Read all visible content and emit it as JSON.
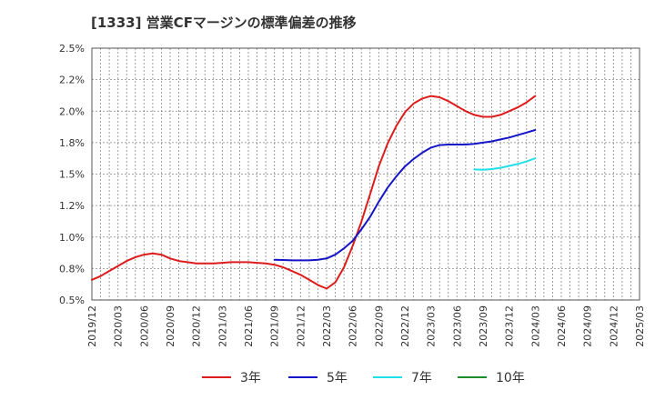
{
  "chart_data": {
    "type": "line",
    "title": "[1333]  営業CFマージンの標準偏差の推移",
    "xlabel": "",
    "ylabel": "",
    "ylim": [
      0.5,
      2.5
    ],
    "y_ticks": [
      "0.5%",
      "0.8%",
      "1.0%",
      "1.2%",
      "1.5%",
      "1.8%",
      "2.0%",
      "2.2%",
      "2.5%"
    ],
    "x_ticks": [
      "2019/12",
      "2020/03",
      "2020/06",
      "2020/09",
      "2020/12",
      "2021/03",
      "2021/06",
      "2021/09",
      "2021/12",
      "2022/03",
      "2022/06",
      "2022/09",
      "2022/12",
      "2023/03",
      "2023/06",
      "2023/09",
      "2023/12",
      "2024/03",
      "2024/06",
      "2024/09",
      "2024/12",
      "2025/03"
    ],
    "grid": true,
    "legend_position": "bottom",
    "series": [
      {
        "name": "3年",
        "color": "#dd1c1c",
        "x": [
          "2019/12",
          "2020/01",
          "2020/02",
          "2020/03",
          "2020/04",
          "2020/05",
          "2020/06",
          "2020/07",
          "2020/08",
          "2020/09",
          "2020/10",
          "2020/11",
          "2020/12",
          "2021/01",
          "2021/02",
          "2021/03",
          "2021/04",
          "2021/05",
          "2021/06",
          "2021/07",
          "2021/08",
          "2021/09",
          "2021/10",
          "2021/11",
          "2021/12",
          "2022/01",
          "2022/02",
          "2022/03",
          "2022/04",
          "2022/05",
          "2022/06",
          "2022/07",
          "2022/08",
          "2022/09",
          "2022/10",
          "2022/11",
          "2022/12",
          "2023/01",
          "2023/02",
          "2023/03",
          "2023/04",
          "2023/05",
          "2023/06",
          "2023/07",
          "2023/08",
          "2023/09",
          "2023/10",
          "2023/11",
          "2023/12",
          "2024/01",
          "2024/02",
          "2024/03"
        ],
        "values": [
          0.66,
          0.69,
          0.73,
          0.77,
          0.81,
          0.84,
          0.86,
          0.87,
          0.86,
          0.83,
          0.81,
          0.8,
          0.79,
          0.79,
          0.79,
          0.795,
          0.8,
          0.8,
          0.8,
          0.795,
          0.79,
          0.78,
          0.76,
          0.73,
          0.7,
          0.66,
          0.62,
          0.59,
          0.64,
          0.76,
          0.93,
          1.12,
          1.34,
          1.56,
          1.74,
          1.88,
          1.99,
          2.06,
          2.1,
          2.12,
          2.11,
          2.08,
          2.04,
          2.0,
          1.97,
          1.955,
          1.955,
          1.97,
          2.0,
          2.03,
          2.07,
          2.12
        ]
      },
      {
        "name": "5年",
        "color": "#1515c8",
        "x": [
          "2021/09",
          "2021/10",
          "2021/11",
          "2021/12",
          "2022/01",
          "2022/02",
          "2022/03",
          "2022/04",
          "2022/05",
          "2022/06",
          "2022/07",
          "2022/08",
          "2022/09",
          "2022/10",
          "2022/11",
          "2022/12",
          "2023/01",
          "2023/02",
          "2023/03",
          "2023/04",
          "2023/05",
          "2023/06",
          "2023/07",
          "2023/08",
          "2023/09",
          "2023/10",
          "2023/11",
          "2023/12",
          "2024/01",
          "2024/02",
          "2024/03"
        ],
        "values": [
          0.82,
          0.818,
          0.815,
          0.815,
          0.815,
          0.82,
          0.83,
          0.86,
          0.91,
          0.97,
          1.06,
          1.16,
          1.28,
          1.39,
          1.48,
          1.56,
          1.62,
          1.67,
          1.71,
          1.73,
          1.735,
          1.735,
          1.735,
          1.74,
          1.75,
          1.76,
          1.775,
          1.79,
          1.81,
          1.83,
          1.85
        ]
      },
      {
        "name": "7年",
        "color": "#22e0e8",
        "x": [
          "2023/08",
          "2023/09",
          "2023/10",
          "2023/11",
          "2023/12",
          "2024/01",
          "2024/02",
          "2024/03"
        ],
        "values": [
          1.537,
          1.535,
          1.54,
          1.55,
          1.565,
          1.58,
          1.6,
          1.625
        ]
      },
      {
        "name": "10年",
        "color": "#1f8c2a",
        "x": [],
        "values": []
      }
    ]
  }
}
